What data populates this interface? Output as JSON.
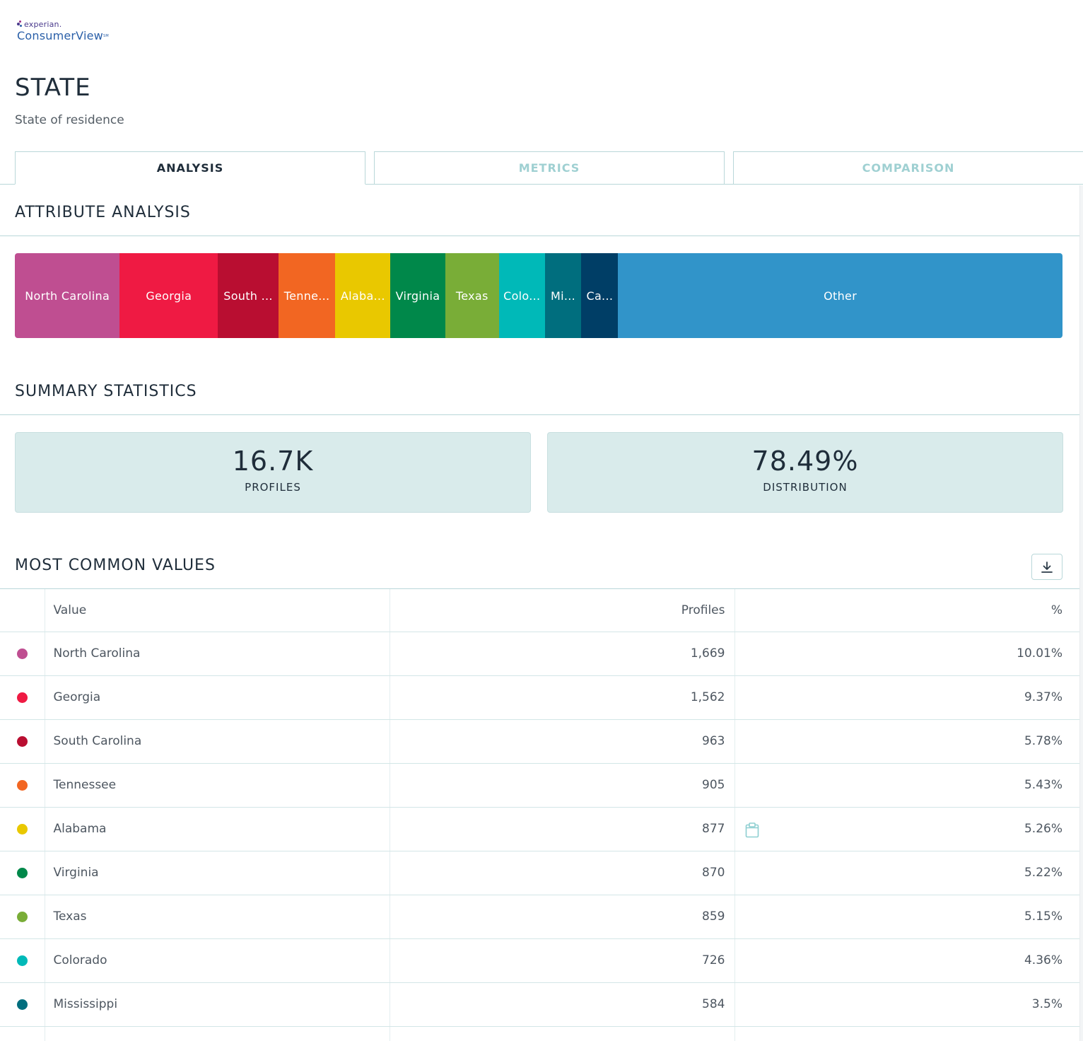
{
  "brand": {
    "company": "experian.",
    "product": "ConsumerView",
    "mark": "SM"
  },
  "page": {
    "title": "STATE",
    "subtitle": "State of residence"
  },
  "tabs": [
    {
      "label": "ANALYSIS",
      "active": true
    },
    {
      "label": "METRICS",
      "active": false
    },
    {
      "label": "COMPARISON",
      "active": false
    }
  ],
  "attribute_analysis": {
    "title": "ATTRIBUTE ANALYSIS",
    "segments": [
      {
        "label": "North Carolina",
        "share": 10.01,
        "color": "#bf4e91"
      },
      {
        "label": "Georgia",
        "share": 9.37,
        "color": "#ef1a43"
      },
      {
        "label": "South ...",
        "share": 5.78,
        "color": "#b90e31"
      },
      {
        "label": "Tenne...",
        "share": 5.43,
        "color": "#f26622"
      },
      {
        "label": "Alaba...",
        "share": 5.26,
        "color": "#e9c800"
      },
      {
        "label": "Virginia",
        "share": 5.22,
        "color": "#00884a"
      },
      {
        "label": "Texas",
        "share": 5.15,
        "color": "#79ad37"
      },
      {
        "label": "Colo...",
        "share": 4.36,
        "color": "#00b9b8"
      },
      {
        "label": "Mi...",
        "share": 3.5,
        "color": "#006e7e"
      },
      {
        "label": "Ca...",
        "share": 3.5,
        "color": "#003e66"
      },
      {
        "label": "Other",
        "share": 42.42,
        "color": "#3194c9"
      }
    ]
  },
  "summary": {
    "title": "SUMMARY STATISTICS",
    "profiles": {
      "value": "16.7K",
      "label": "PROFILES"
    },
    "distribution": {
      "value": "78.49%",
      "label": "DISTRIBUTION"
    }
  },
  "common_values": {
    "title": "MOST COMMON VALUES",
    "download_icon": "download-icon",
    "columns": {
      "value": "Value",
      "profiles": "Profiles",
      "pct": "%"
    },
    "rows": [
      {
        "value": "North Carolina",
        "profiles": "1,669",
        "pct": "10.01%",
        "color": "#bf4e91"
      },
      {
        "value": "Georgia",
        "profiles": "1,562",
        "pct": "9.37%",
        "color": "#ef1a43"
      },
      {
        "value": "South Carolina",
        "profiles": "963",
        "pct": "5.78%",
        "color": "#b90e31"
      },
      {
        "value": "Tennessee",
        "profiles": "905",
        "pct": "5.43%",
        "color": "#f26622"
      },
      {
        "value": "Alabama",
        "profiles": "877",
        "pct": "5.26%",
        "color": "#e9c800",
        "clipboard": true
      },
      {
        "value": "Virginia",
        "profiles": "870",
        "pct": "5.22%",
        "color": "#00884a"
      },
      {
        "value": "Texas",
        "profiles": "859",
        "pct": "5.15%",
        "color": "#79ad37"
      },
      {
        "value": "Colorado",
        "profiles": "726",
        "pct": "4.36%",
        "color": "#00b9b8"
      },
      {
        "value": "Mississippi",
        "profiles": "584",
        "pct": "3.5%",
        "color": "#006e7e"
      }
    ]
  }
}
